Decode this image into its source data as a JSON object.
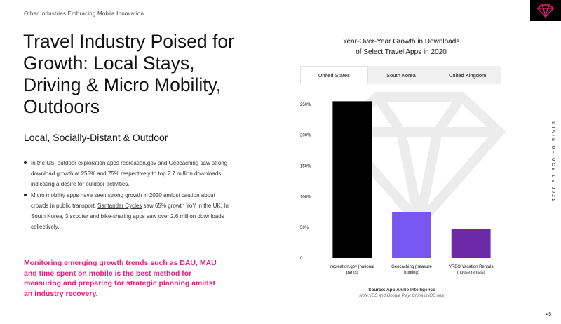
{
  "kicker": "Other Industries Embracing Mobile Innovation",
  "title": "Travel Industry Poised for Growth: Local Stays, Driving & Micro Mobility, Outdoors",
  "subtitle": "Local, Socially-Distant & Outdoor",
  "bullets": [
    {
      "pre": "In the US, outdoor exploration apps ",
      "link1": "recreation.gov",
      "mid": " and ",
      "link2": "Geocaching",
      "post": " saw strong download growth at 255% and 75% respectively to top 2.7 million downloads, indicating a desire for outdoor activities."
    },
    {
      "pre": "Micro mobility apps have seen strong growth in 2020 amidst caution about crowds in public transport. ",
      "link1": "Santander Cycles",
      "post": " saw 65% growth YoY in the UK. In South Korea, 3 scooter and bike-sharing apps saw over 2.6 million downloads collectively."
    }
  ],
  "callout": "Monitoring emerging growth trends such as DAU, MAU and time spent on mobile is the best method for measuring and preparing for strategic planning amidst an industry recovery.",
  "side_label": "STATE OF MOBILE 2021",
  "page_number": "45",
  "tabs": [
    "United States",
    "South Korea",
    "United Kingdom"
  ],
  "source": "Source: App Annie Intelligence",
  "note": "Note: iOS and Google Play; China is iOS only",
  "colors": {
    "accent": "#e8207c",
    "bar1": "#000000",
    "bar2": "#7856f0",
    "bar3": "#6d2aa8"
  },
  "chart_data": {
    "type": "bar",
    "title_line1": "Year-Over-Year Growth in Downloads",
    "title_line2": "of Select Travel Apps in 2020",
    "categories": [
      [
        "recreation.gov (national",
        "parks)"
      ],
      [
        "Geocaching (treasure",
        "hunting)"
      ],
      [
        "VRBO Vacation Rentals",
        "(house rentals)"
      ]
    ],
    "values": [
      255,
      75,
      47
    ],
    "colors": [
      "#000000",
      "#7856f0",
      "#6d2aa8"
    ],
    "ylim": [
      0,
      260
    ],
    "yticks": [
      0,
      50,
      100,
      150,
      200,
      250
    ],
    "ytick_labels": [
      "0",
      "50%",
      "100%",
      "150%",
      "200%",
      "250%"
    ],
    "xlabel": "",
    "ylabel": "",
    "grid": false
  }
}
